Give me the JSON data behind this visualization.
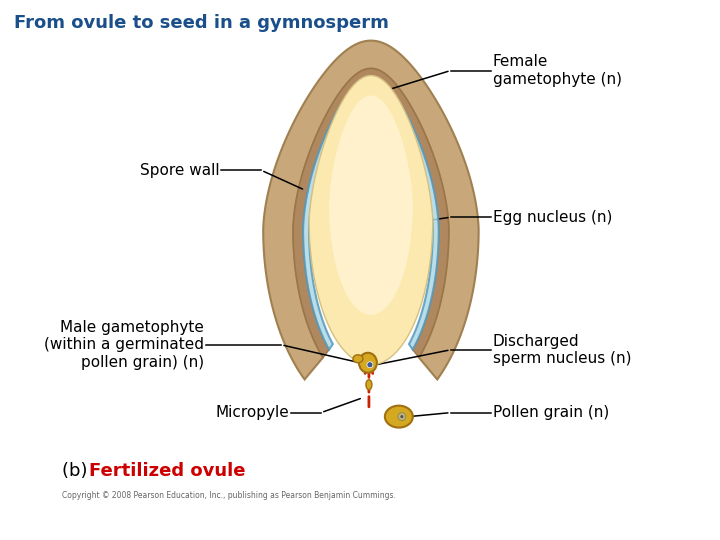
{
  "title": "From ovule to seed in a gymnosperm",
  "title_color": "#1a4f8a",
  "bg_color": "#ffffff",
  "labels": {
    "female_gametophyte": "Female\ngametophyte (n)",
    "spore_wall": "Spore wall",
    "egg_nucleus": "Egg nucleus (n)",
    "male_gametophyte": "Male gametophyte\n(within a germinated\npollen grain) (n)",
    "discharged_sperm": "Discharged\nsperm nucleus (n)",
    "micropyle": "Micropyle",
    "pollen_grain": "Pollen grain (n)"
  },
  "outer_color": "#c8a87a",
  "outer_edge": "#a08050",
  "inner_band_color": "#b8966a",
  "spore_wall_color": "#add8e6",
  "spore_wall_edge": "#5599bb",
  "female_gam_color": "#fce9b0",
  "female_gam_center": "#fff5d8",
  "pollen_color": "#d4a820",
  "pollen_edge": "#a07010",
  "nucleus_color_blue": "#3a5a9a",
  "nucleus_color_gray": "#707070",
  "arrow_red": "#cc2200",
  "label_fontsize": 11,
  "title_fontsize": 13
}
